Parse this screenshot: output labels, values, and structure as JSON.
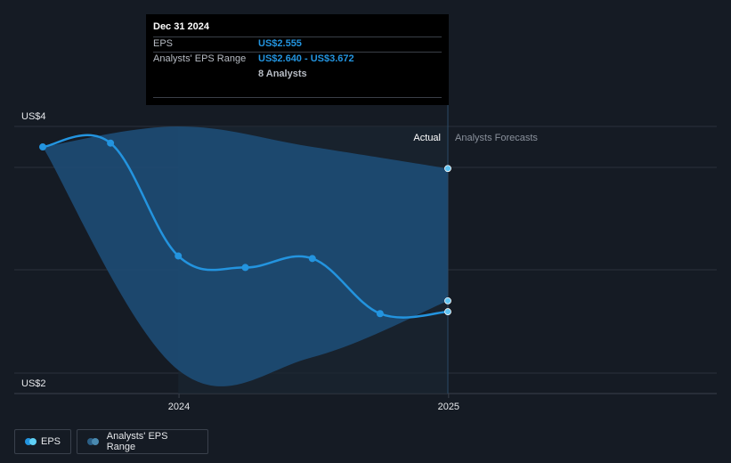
{
  "chart_data": {
    "type": "line",
    "title": "",
    "xlabel": "",
    "ylabel": "",
    "ylim": [
      2,
      4
    ],
    "y_tick_labels": [
      "US$2",
      "US$4"
    ],
    "x_tick_labels": [
      "2024",
      "2025"
    ],
    "x_range": [
      "2023-07-01",
      "2025-12-31"
    ],
    "section_labels": {
      "actual": "Actual",
      "forecast": "Analysts Forecasts"
    },
    "series": [
      {
        "name": "EPS",
        "color": "#2394df",
        "points": [
          {
            "x": "2023-06-30",
            "y": 3.84
          },
          {
            "x": "2023-09-30",
            "y": 3.87
          },
          {
            "x": "2023-12-31",
            "y": 2.99
          },
          {
            "x": "2024-03-31",
            "y": 2.9
          },
          {
            "x": "2024-06-30",
            "y": 2.97
          },
          {
            "x": "2024-09-30",
            "y": 2.54
          },
          {
            "x": "2024-12-31",
            "y": 2.555
          }
        ]
      },
      {
        "name": "Analysts' EPS Range",
        "color": "#1d4f7a",
        "upper": [
          {
            "x": "2023-06-30",
            "y": 3.84
          },
          {
            "x": "2023-12-31",
            "y": 4.0
          },
          {
            "x": "2024-06-30",
            "y": 3.84
          },
          {
            "x": "2024-12-31",
            "y": 3.672
          }
        ],
        "lower": [
          {
            "x": "2023-06-30",
            "y": 3.84
          },
          {
            "x": "2023-12-31",
            "y": 2.1
          },
          {
            "x": "2024-06-30",
            "y": 2.2
          },
          {
            "x": "2024-12-31",
            "y": 2.64
          }
        ]
      }
    ],
    "legend_position": "bottom-left"
  },
  "tooltip": {
    "date": "Dec 31 2024",
    "eps_label": "EPS",
    "eps_value": "US$2.555",
    "range_label": "Analysts' EPS Range",
    "range_value": "US$2.640 - US$3.672",
    "analysts": "8 Analysts"
  },
  "legend": {
    "eps": "EPS",
    "range": "Analysts' EPS Range"
  },
  "colors": {
    "background": "#151b24",
    "eps_line": "#2394df",
    "range_fill": "#1d4f7a",
    "gridline": "#2a313b"
  }
}
